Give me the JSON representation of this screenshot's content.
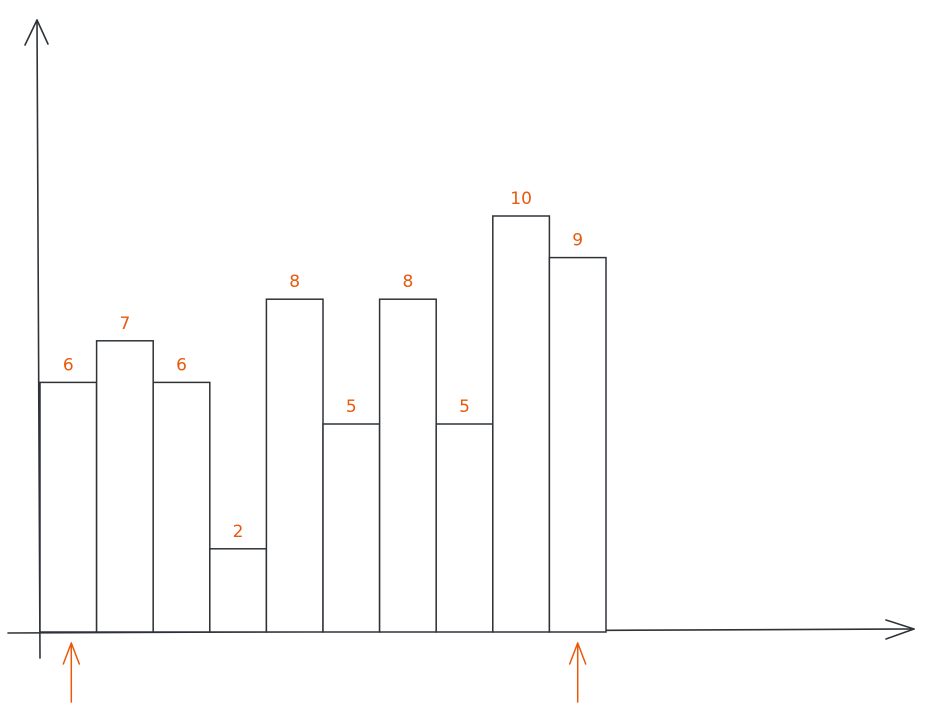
{
  "chart_data": {
    "type": "bar",
    "categories": [
      "",
      "",
      "",
      "",
      "",
      "",
      "",
      "",
      "",
      ""
    ],
    "values": [
      6,
      7,
      6,
      2,
      8,
      5,
      8,
      5,
      10,
      9
    ],
    "data_labels": [
      "6",
      "7",
      "6",
      "2",
      "8",
      "5",
      "8",
      "5",
      "10",
      "9"
    ],
    "title": "",
    "xlabel": "",
    "ylabel": "",
    "ylim": [
      0,
      14
    ],
    "grid": false,
    "legend": "none",
    "pointer_markers": {
      "count": 2,
      "at_bar_index": [
        0,
        9
      ]
    }
  },
  "colors": {
    "ink": "#2f3338",
    "accent": "#e8590c",
    "bar_fill": "#ffffff"
  }
}
